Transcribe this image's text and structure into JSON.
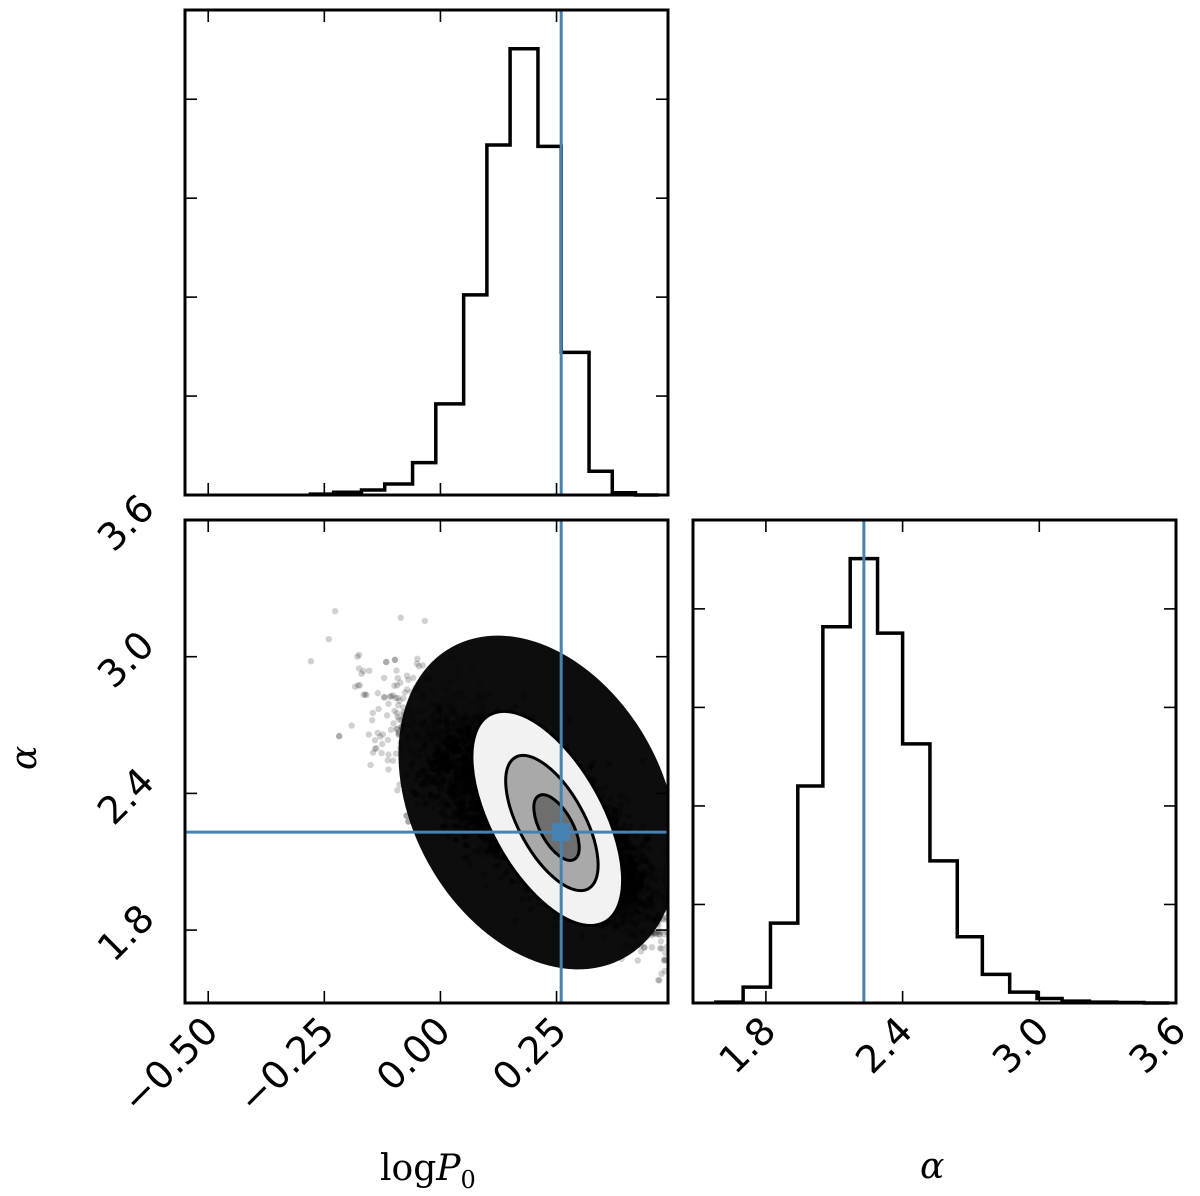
{
  "colors": {
    "truth": "#4682b4",
    "hist": "#000000",
    "scatter": "#000000",
    "contour_fill_light": "#f2f2f2",
    "contour_fill_mid": "#a9a9a9",
    "contour_fill_dark": "#6e6e6e"
  },
  "labels": {
    "xlabel_left_prefix": "log",
    "xlabel_left_var": "P",
    "xlabel_left_sub": "0",
    "xlabel_right": "α",
    "ylabel": "α"
  },
  "chart_data": {
    "type": "corner",
    "parameters": [
      "logP0",
      "alpha"
    ],
    "truths": {
      "logP0": 0.26,
      "alpha": 2.23
    },
    "hist_logP0": {
      "type": "bar",
      "xlim": [
        -0.55,
        0.49
      ],
      "bin_edges": [
        -0.28,
        -0.23,
        -0.17,
        -0.12,
        -0.06,
        -0.01,
        0.05,
        0.1,
        0.15,
        0.21,
        0.26,
        0.32,
        0.37,
        0.42,
        0.47
      ],
      "counts": [
        0.002,
        0.006,
        0.011,
        0.024,
        0.071,
        0.2,
        0.439,
        0.768,
        0.979,
        0.765,
        0.313,
        0.052,
        0.005,
        0.0
      ],
      "ytick_count": 4
    },
    "hist_alpha": {
      "type": "bar",
      "xlim": [
        1.48,
        3.6
      ],
      "xticks": [
        1.8,
        2.4,
        3.0,
        3.6
      ],
      "xtick_labels": [
        "1.8",
        "2.4",
        "3.0",
        "3.6"
      ],
      "bin_edges": [
        1.58,
        1.7,
        1.82,
        1.94,
        2.05,
        2.17,
        2.29,
        2.4,
        2.52,
        2.64,
        2.75,
        2.87,
        2.99,
        3.1,
        3.22,
        3.34,
        3.46,
        3.57
      ],
      "counts": [
        0.002,
        0.035,
        0.176,
        0.478,
        0.829,
        0.979,
        0.815,
        0.571,
        0.313,
        0.146,
        0.063,
        0.024,
        0.01,
        0.004,
        0.002,
        0.001,
        0.0
      ],
      "ytick_count": 4
    },
    "joint": {
      "type": "scatter",
      "xlim": [
        -0.55,
        0.49
      ],
      "ylim": [
        1.48,
        3.6
      ],
      "xticks": [
        -0.5,
        -0.25,
        0.0,
        0.25
      ],
      "xtick_labels": [
        "−0.50",
        "−0.25",
        "0.00",
        "0.25"
      ],
      "yticks": [
        1.8,
        2.4,
        3.0,
        3.6
      ],
      "ytick_labels": [
        "1.8",
        "2.4",
        "3.0",
        "3.6"
      ],
      "mean": [
        0.24,
        2.26
      ],
      "correlation": -0.78,
      "std": [
        0.12,
        0.22
      ],
      "contours": [
        {
          "level": "outer",
          "center": [
            0.23,
            2.29
          ],
          "rx": 0.12,
          "ry": 0.52,
          "angle": -29,
          "fill": "#f2f2f2"
        },
        {
          "level": "middle",
          "center": [
            0.24,
            2.27
          ],
          "rx": 0.07,
          "ry": 0.33,
          "angle": -29,
          "fill": "#a9a9a9"
        },
        {
          "level": "inner",
          "center": [
            0.25,
            2.25
          ],
          "rx": 0.035,
          "ry": 0.16,
          "angle": -29,
          "fill": "#6e6e6e"
        }
      ]
    }
  }
}
